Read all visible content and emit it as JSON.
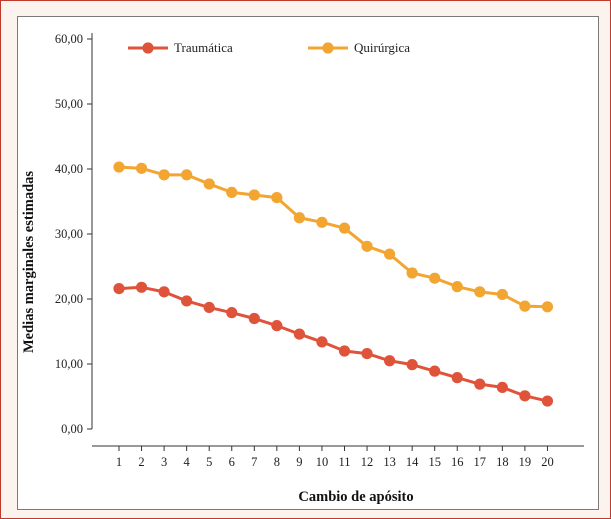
{
  "chart_data": {
    "type": "line",
    "title": "",
    "xlabel": "Cambio de apósito",
    "ylabel": "Medias marginales estimadas",
    "x": [
      1,
      2,
      3,
      4,
      5,
      6,
      7,
      8,
      9,
      10,
      11,
      12,
      13,
      14,
      15,
      16,
      17,
      18,
      19,
      20
    ],
    "x_tick_labels": [
      "1",
      "2",
      "3",
      "4",
      "5",
      "6",
      "7",
      "8",
      "9",
      "10",
      "11",
      "12",
      "13",
      "14",
      "15",
      "16",
      "17",
      "18",
      "19",
      "20"
    ],
    "ylim": [
      0,
      60
    ],
    "y_ticks": [
      0,
      10,
      20,
      30,
      40,
      50,
      60
    ],
    "y_tick_labels": [
      "0,00",
      "10,00",
      "20,00",
      "30,00",
      "40,00",
      "50,00",
      "60,00"
    ],
    "grid": false,
    "legend_position": "top-left",
    "series": [
      {
        "name": "Traumática",
        "color": "#e0533b",
        "values": [
          21.6,
          21.8,
          21.1,
          19.7,
          18.7,
          17.9,
          17.0,
          15.9,
          14.6,
          13.4,
          12.0,
          11.6,
          10.5,
          9.9,
          8.9,
          7.9,
          6.9,
          6.4,
          5.1,
          4.3
        ]
      },
      {
        "name": "Quirúrgica",
        "color": "#f2a531",
        "values": [
          40.3,
          40.1,
          39.1,
          39.1,
          37.7,
          36.4,
          36.0,
          35.6,
          32.5,
          31.8,
          30.9,
          28.1,
          26.9,
          24.0,
          23.2,
          21.9,
          21.1,
          20.7,
          18.9,
          18.8
        ]
      }
    ]
  }
}
